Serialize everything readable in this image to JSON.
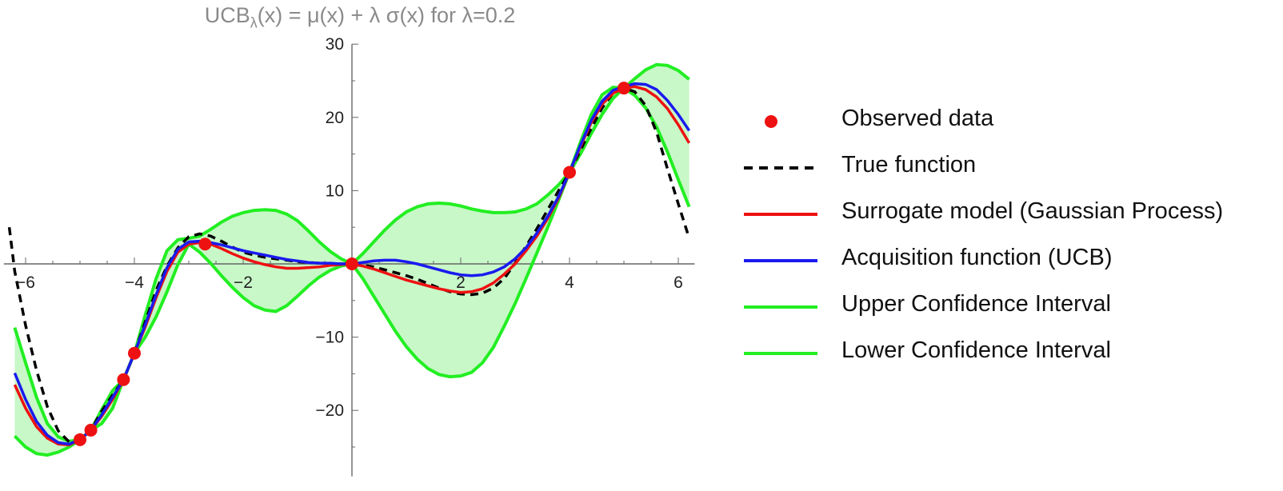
{
  "title": {
    "prefix": "UCB",
    "subscript": "λ",
    "body": "(x) = μ(x) + λ σ(x)  for λ=0.2"
  },
  "chart_data": {
    "type": "line",
    "title": "UCBλ(x) = μ(x) + λ σ(x)  for λ=0.2",
    "xlabel": "",
    "ylabel": "",
    "xlim": [
      -6.3,
      6.3
    ],
    "ylim": [
      -29,
      30
    ],
    "grid": false,
    "legend_placement": "right",
    "x_ticks": [
      -6,
      -4,
      -2,
      2,
      4,
      6
    ],
    "y_ticks": [
      -20,
      -10,
      10,
      20,
      30
    ],
    "x_tick_labels": [
      "−6",
      "−4",
      "−2",
      "2",
      "4",
      "6"
    ],
    "y_tick_labels": [
      "−20",
      "−10",
      "10",
      "20",
      "30"
    ],
    "colors": {
      "observed": "#ee1111",
      "true": "#000000",
      "surrogate": "#ee1111",
      "acquisition": "#1a1aee",
      "upper": "#22ee22",
      "lower": "#22ee22",
      "band_fill": "#c8f8c8"
    },
    "series": [
      {
        "name": "Observed data",
        "kind": "points",
        "x": [
          -5,
          -4.8,
          -4.2,
          -4,
          -2.7,
          0,
          4,
          5
        ],
        "y": [
          -24,
          -22.7,
          -15.8,
          -12.2,
          2.7,
          0,
          12.5,
          24
        ]
      },
      {
        "name": "True function",
        "kind": "dashed",
        "x": [
          -6.3,
          -6.2,
          -6.0,
          -5.8,
          -5.6,
          -5.4,
          -5.2,
          -5.0,
          -4.8,
          -4.6,
          -4.4,
          -4.2,
          -4.0,
          -3.8,
          -3.6,
          -3.4,
          -3.2,
          -3.0,
          -2.8,
          -2.6,
          -2.4,
          -2.2,
          -2.0,
          -1.8,
          -1.6,
          -1.4,
          -1.2,
          -1.0,
          -0.8,
          -0.6,
          -0.4,
          -0.2,
          0.0,
          0.2,
          0.4,
          0.6,
          0.8,
          1.0,
          1.2,
          1.4,
          1.6,
          1.8,
          2.0,
          2.2,
          2.4,
          2.6,
          2.8,
          3.0,
          3.2,
          3.4,
          3.6,
          3.8,
          4.0,
          4.2,
          4.4,
          4.6,
          4.8,
          5.0,
          5.2,
          5.4,
          5.6,
          5.8,
          6.0,
          6.2
        ],
        "y": [
          5.0,
          -1.0,
          -8.4,
          -14.5,
          -19.5,
          -22.8,
          -24.3,
          -24.0,
          -22.7,
          -20.1,
          -17.9,
          -15.8,
          -12.2,
          -7.9,
          -3.6,
          -0.3,
          2.2,
          3.7,
          4.1,
          3.8,
          3.1,
          2.3,
          1.6,
          1.2,
          0.9,
          0.7,
          0.5,
          0.3,
          0.2,
          0.1,
          0.0,
          0.0,
          0.0,
          -0.2,
          -0.4,
          -0.8,
          -1.2,
          -1.6,
          -2.1,
          -2.7,
          -3.3,
          -3.8,
          -4.1,
          -4.2,
          -4.0,
          -3.3,
          -2.0,
          0.1,
          2.4,
          4.8,
          7.4,
          10.0,
          12.5,
          15.5,
          18.5,
          21.3,
          23.3,
          24.0,
          23.5,
          21.6,
          18.0,
          13.0,
          8.2,
          3.5
        ]
      },
      {
        "name": "Surrogate model (Gaussian Process)",
        "kind": "line",
        "x": [
          -6.2,
          -6.0,
          -5.8,
          -5.6,
          -5.4,
          -5.2,
          -5.0,
          -4.8,
          -4.6,
          -4.4,
          -4.2,
          -4.0,
          -3.8,
          -3.6,
          -3.4,
          -3.2,
          -3.0,
          -2.8,
          -2.6,
          -2.4,
          -2.2,
          -2.0,
          -1.8,
          -1.6,
          -1.4,
          -1.2,
          -1.0,
          -0.8,
          -0.6,
          -0.4,
          -0.2,
          0.0,
          0.2,
          0.4,
          0.6,
          0.8,
          1.0,
          1.2,
          1.4,
          1.6,
          1.8,
          2.0,
          2.2,
          2.4,
          2.6,
          2.8,
          3.0,
          3.2,
          3.4,
          3.6,
          3.8,
          4.0,
          4.2,
          4.4,
          4.6,
          4.8,
          5.0,
          5.2,
          5.4,
          5.6,
          5.8,
          6.0,
          6.2
        ],
        "y": [
          -16.5,
          -19.7,
          -22.2,
          -23.8,
          -24.6,
          -24.7,
          -24.0,
          -22.7,
          -20.8,
          -18.5,
          -15.8,
          -12.2,
          -8.6,
          -4.6,
          -1.0,
          1.6,
          2.7,
          2.9,
          2.7,
          2.1,
          1.4,
          0.8,
          0.3,
          -0.1,
          -0.4,
          -0.6,
          -0.6,
          -0.5,
          -0.4,
          -0.2,
          -0.1,
          0.0,
          -0.3,
          -0.7,
          -1.2,
          -1.7,
          -2.2,
          -2.6,
          -3.0,
          -3.4,
          -3.7,
          -3.9,
          -3.8,
          -3.4,
          -2.6,
          -1.4,
          0.0,
          1.8,
          3.8,
          6.2,
          9.0,
          12.5,
          16.0,
          19.3,
          21.8,
          23.3,
          24.0,
          24.2,
          23.8,
          22.8,
          21.2,
          19.0,
          16.5
        ]
      },
      {
        "name": "Acquisition function (UCB)",
        "kind": "line",
        "x": [
          -6.2,
          -6.0,
          -5.8,
          -5.6,
          -5.4,
          -5.2,
          -5.0,
          -4.8,
          -4.6,
          -4.4,
          -4.2,
          -4.0,
          -3.8,
          -3.6,
          -3.4,
          -3.2,
          -3.0,
          -2.8,
          -2.6,
          -2.4,
          -2.2,
          -2.0,
          -1.8,
          -1.6,
          -1.4,
          -1.2,
          -1.0,
          -0.8,
          -0.6,
          -0.4,
          -0.2,
          0.0,
          0.2,
          0.4,
          0.6,
          0.8,
          1.0,
          1.2,
          1.4,
          1.6,
          1.8,
          2.0,
          2.2,
          2.4,
          2.6,
          2.8,
          3.0,
          3.2,
          3.4,
          3.6,
          3.8,
          4.0,
          4.2,
          4.4,
          4.6,
          4.8,
          5.0,
          5.2,
          5.4,
          5.6,
          5.8,
          6.0,
          6.2
        ],
        "y": [
          -14.9,
          -18.5,
          -21.5,
          -23.4,
          -24.4,
          -24.6,
          -24.0,
          -22.7,
          -20.6,
          -18.2,
          -15.8,
          -12.2,
          -8.3,
          -4.2,
          -0.5,
          2.0,
          3.0,
          3.1,
          2.9,
          2.6,
          2.2,
          1.8,
          1.5,
          1.2,
          0.9,
          0.6,
          0.4,
          0.2,
          0.1,
          0.1,
          0.0,
          0.0,
          0.2,
          0.4,
          0.5,
          0.5,
          0.3,
          0.0,
          -0.4,
          -0.8,
          -1.2,
          -1.5,
          -1.6,
          -1.5,
          -1.1,
          -0.4,
          0.7,
          2.2,
          4.2,
          6.5,
          9.2,
          12.5,
          16.2,
          19.6,
          22.2,
          23.7,
          24.2,
          24.6,
          24.5,
          23.8,
          22.3,
          20.4,
          18.2
        ]
      },
      {
        "name": "Upper Confidence Interval",
        "kind": "line",
        "x": [
          -6.2,
          -6.0,
          -5.8,
          -5.6,
          -5.4,
          -5.2,
          -5.0,
          -4.8,
          -4.6,
          -4.4,
          -4.2,
          -4.0,
          -3.8,
          -3.6,
          -3.4,
          -3.2,
          -3.0,
          -2.8,
          -2.6,
          -2.4,
          -2.2,
          -2.0,
          -1.8,
          -1.6,
          -1.4,
          -1.2,
          -1.0,
          -0.8,
          -0.6,
          -0.4,
          -0.2,
          0.0,
          0.2,
          0.4,
          0.6,
          0.8,
          1.0,
          1.2,
          1.4,
          1.6,
          1.8,
          2.0,
          2.2,
          2.4,
          2.6,
          2.8,
          3.0,
          3.2,
          3.4,
          3.6,
          3.8,
          4.0,
          4.2,
          4.4,
          4.6,
          4.8,
          5.0,
          5.2,
          5.4,
          5.6,
          5.8,
          6.0,
          6.2
        ],
        "y": [
          -8.7,
          -13.5,
          -18.2,
          -21.8,
          -23.6,
          -24.2,
          -24.0,
          -22.7,
          -19.9,
          -17.3,
          -15.8,
          -12.2,
          -7.0,
          -2.0,
          1.8,
          3.3,
          3.5,
          3.8,
          4.7,
          5.7,
          6.5,
          7.0,
          7.3,
          7.4,
          7.3,
          6.8,
          5.9,
          4.5,
          3.0,
          1.7,
          0.7,
          0.0,
          1.4,
          3.0,
          4.6,
          6.0,
          7.1,
          7.8,
          8.2,
          8.3,
          8.2,
          7.9,
          7.5,
          7.2,
          7.0,
          7.0,
          7.1,
          7.5,
          8.2,
          9.4,
          10.8,
          12.5,
          16.6,
          20.4,
          23.1,
          24.1,
          24.0,
          25.3,
          26.5,
          27.2,
          27.1,
          26.4,
          25.2
        ]
      },
      {
        "name": "Lower Confidence Interval",
        "kind": "line",
        "x": [
          -6.2,
          -6.0,
          -5.8,
          -5.6,
          -5.4,
          -5.2,
          -5.0,
          -4.8,
          -4.6,
          -4.4,
          -4.2,
          -4.0,
          -3.8,
          -3.6,
          -3.4,
          -3.2,
          -3.0,
          -2.8,
          -2.6,
          -2.4,
          -2.2,
          -2.0,
          -1.8,
          -1.6,
          -1.4,
          -1.2,
          -1.0,
          -0.8,
          -0.6,
          -0.4,
          -0.2,
          0.0,
          0.2,
          0.4,
          0.6,
          0.8,
          1.0,
          1.2,
          1.4,
          1.6,
          1.8,
          2.0,
          2.2,
          2.4,
          2.6,
          2.8,
          3.0,
          3.2,
          3.4,
          3.6,
          3.8,
          4.0,
          4.2,
          4.4,
          4.6,
          4.8,
          5.0,
          5.2,
          5.4,
          5.6,
          5.8,
          6.0,
          6.2
        ],
        "y": [
          -23.5,
          -25.0,
          -25.9,
          -26.1,
          -25.7,
          -25.0,
          -24.0,
          -22.7,
          -21.8,
          -19.7,
          -15.8,
          -12.2,
          -10.0,
          -7.2,
          -3.8,
          -0.1,
          2.7,
          1.6,
          0.1,
          -1.6,
          -3.2,
          -4.6,
          -5.7,
          -6.3,
          -6.5,
          -5.7,
          -4.4,
          -3.0,
          -1.8,
          -0.9,
          -0.3,
          0.0,
          -2.0,
          -4.4,
          -6.8,
          -9.2,
          -11.3,
          -13.0,
          -14.3,
          -15.1,
          -15.4,
          -15.3,
          -14.8,
          -13.5,
          -11.4,
          -8.5,
          -5.4,
          -2.0,
          1.5,
          5.0,
          8.7,
          12.5,
          15.0,
          17.8,
          20.4,
          22.6,
          24.0,
          23.0,
          21.3,
          18.7,
          15.3,
          11.5,
          7.8
        ]
      }
    ]
  },
  "legend": {
    "items": [
      {
        "label": "Observed data",
        "kind": "point",
        "color": "#ee1111"
      },
      {
        "label": "True function",
        "kind": "dashed",
        "color": "#000000"
      },
      {
        "label": "Surrogate model (Gaussian Process)",
        "kind": "line",
        "color": "#ee1111"
      },
      {
        "label": "Acquisition function (UCB)",
        "kind": "line",
        "color": "#1a1aee"
      },
      {
        "label": "Upper Confidence Interval",
        "kind": "line",
        "color": "#22ee22"
      },
      {
        "label": "Lower Confidence Interval",
        "kind": "line",
        "color": "#22ee22"
      }
    ]
  }
}
